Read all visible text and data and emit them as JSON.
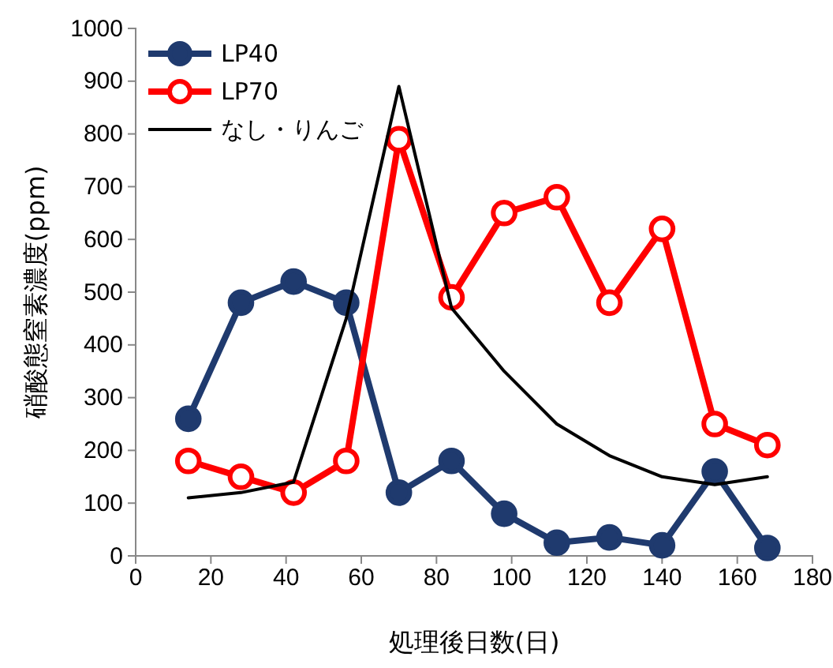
{
  "chart_data": {
    "type": "line",
    "xlabel": "処理後日数(日)",
    "ylabel": "硝酸態窒素濃度(ppm)",
    "xlim": [
      0,
      180
    ],
    "xticks": [
      0,
      20,
      40,
      60,
      80,
      100,
      120,
      140,
      160,
      180
    ],
    "ylim": [
      0,
      1000
    ],
    "yticks": [
      0,
      100,
      200,
      300,
      400,
      500,
      600,
      700,
      800,
      900,
      1000
    ],
    "grid": false,
    "legend": "top left",
    "marker": "circle",
    "series": [
      {
        "name": "LP40",
        "color": "#1f3a6e",
        "x": [
          14,
          28,
          42,
          56,
          70,
          84,
          98,
          112,
          126,
          140,
          154,
          168
        ],
        "values": [
          260,
          480,
          520,
          480,
          120,
          180,
          80,
          25,
          35,
          20,
          160,
          15
        ]
      },
      {
        "name": "LP70",
        "color": "#ff0000",
        "x": [
          14,
          28,
          42,
          56,
          70,
          84,
          98,
          112,
          126,
          140,
          154,
          168
        ],
        "values": [
          180,
          150,
          120,
          180,
          790,
          490,
          650,
          680,
          480,
          620,
          250,
          210
        ]
      },
      {
        "name": "なし・りんご",
        "color": "#000000",
        "marker": "none",
        "x": [
          14,
          28,
          42,
          56,
          70,
          84,
          98,
          112,
          126,
          140,
          154,
          168
        ],
        "values": [
          110,
          120,
          140,
          450,
          890,
          470,
          350,
          250,
          190,
          150,
          135,
          150
        ]
      }
    ]
  }
}
